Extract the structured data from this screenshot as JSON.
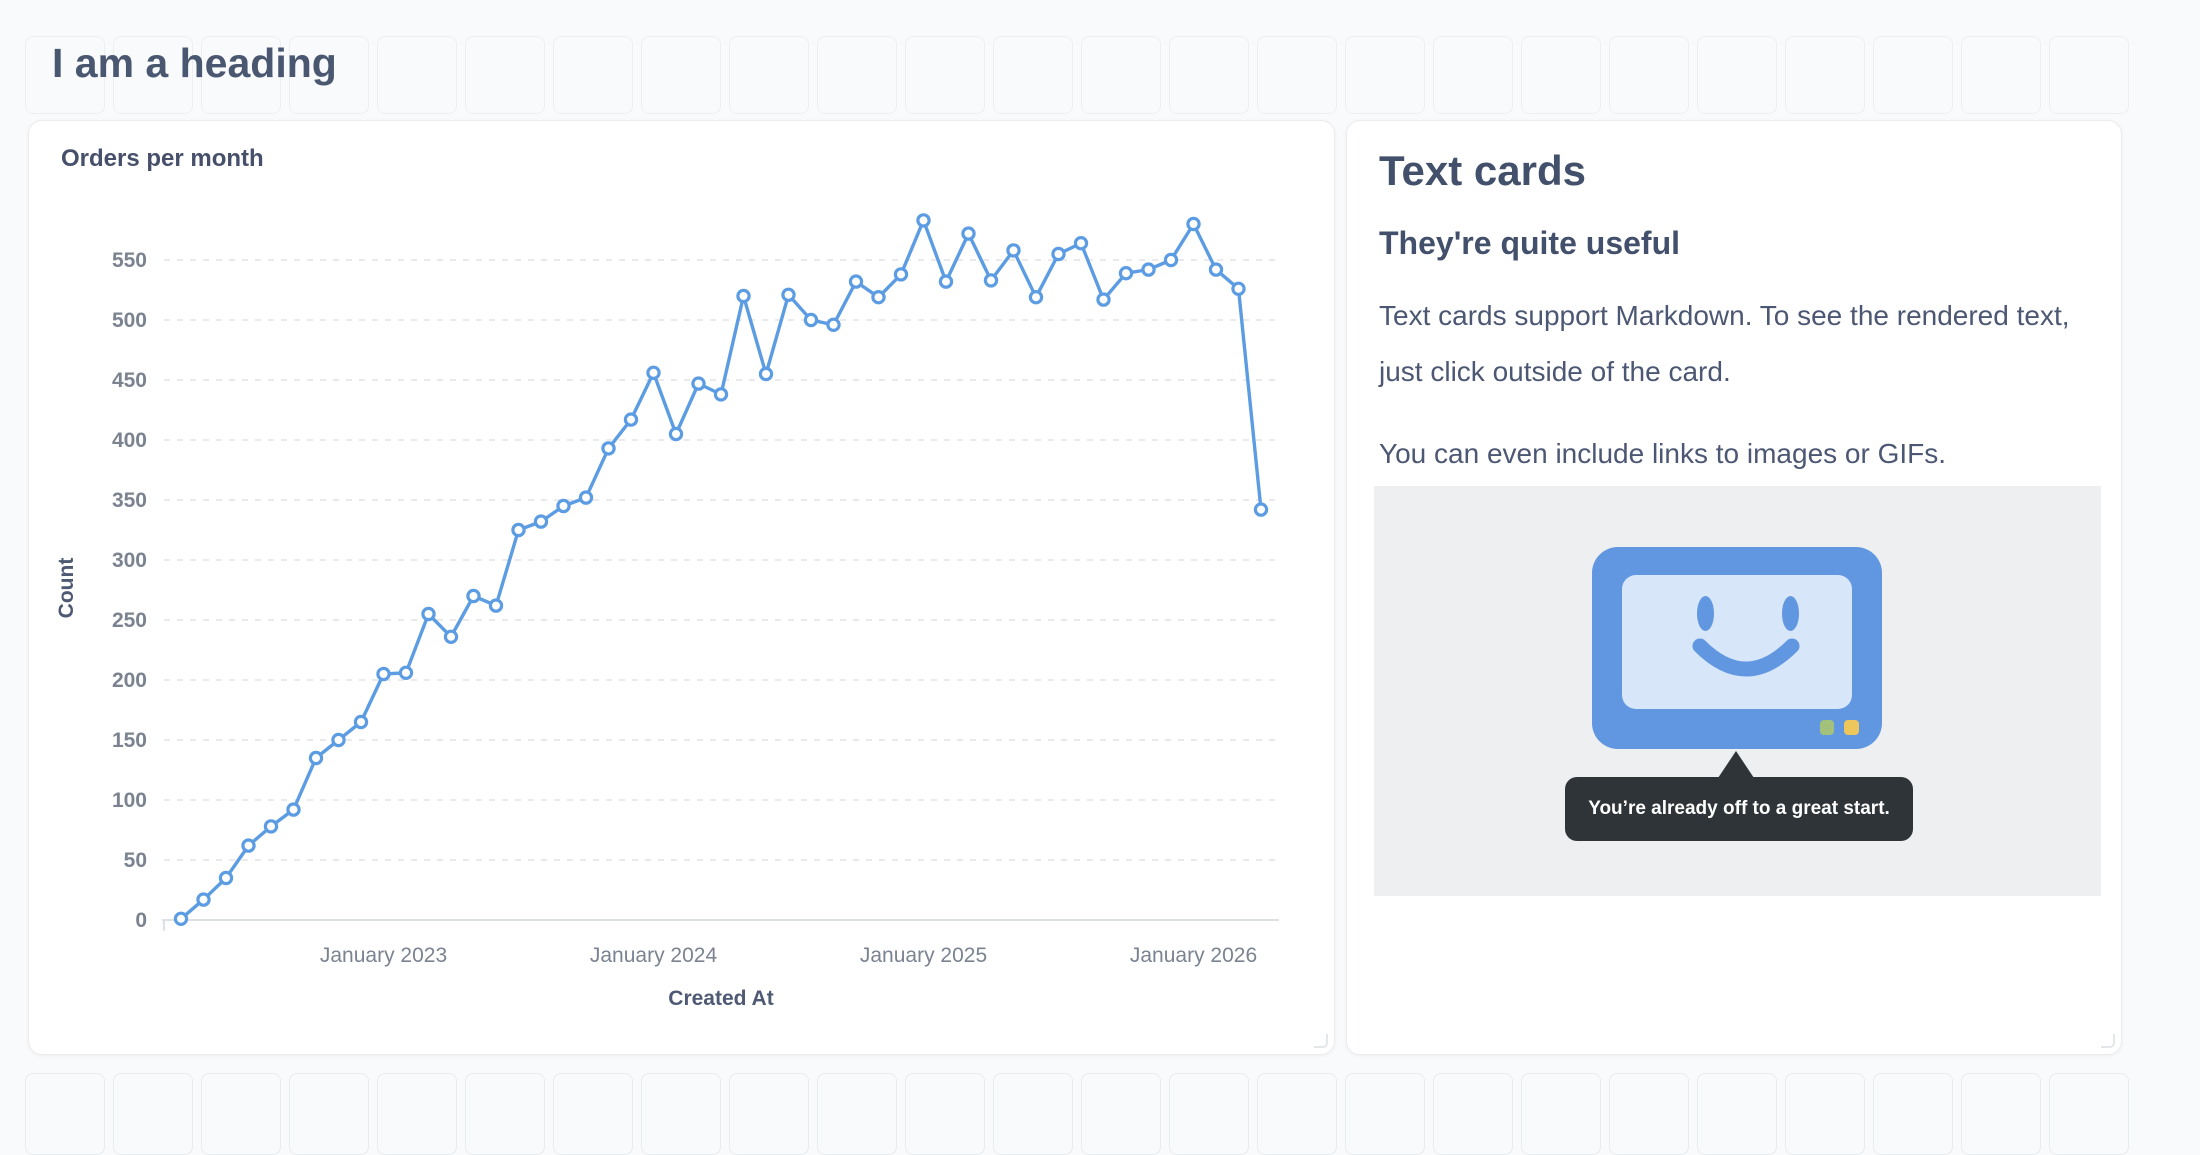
{
  "page": {
    "background": "#f9fafc"
  },
  "heading": {
    "title": "I am a heading"
  },
  "chart_card": {
    "title": "Orders per month"
  },
  "chart_data": {
    "type": "line",
    "title": "Orders per month",
    "xlabel": "Created At",
    "ylabel": "Count",
    "x_unit": "month",
    "categories": [
      "2022-04",
      "2022-05",
      "2022-06",
      "2022-07",
      "2022-08",
      "2022-09",
      "2022-10",
      "2022-11",
      "2022-12",
      "2023-01",
      "2023-02",
      "2023-03",
      "2023-04",
      "2023-05",
      "2023-06",
      "2023-07",
      "2023-08",
      "2023-09",
      "2023-10",
      "2023-11",
      "2023-12",
      "2024-01",
      "2024-02",
      "2024-03",
      "2024-04",
      "2024-05",
      "2024-06",
      "2024-07",
      "2024-08",
      "2024-09",
      "2024-10",
      "2024-11",
      "2024-12",
      "2025-01",
      "2025-02",
      "2025-03",
      "2025-04",
      "2025-05",
      "2025-06",
      "2025-07",
      "2025-08",
      "2025-09",
      "2025-10",
      "2025-11",
      "2025-12",
      "2026-01",
      "2026-02",
      "2026-03",
      "2026-04"
    ],
    "values": [
      1,
      17,
      35,
      62,
      78,
      92,
      135,
      150,
      165,
      205,
      206,
      255,
      236,
      270,
      262,
      325,
      332,
      345,
      352,
      393,
      417,
      456,
      405,
      447,
      438,
      520,
      455,
      521,
      500,
      496,
      532,
      519,
      538,
      583,
      532,
      572,
      533,
      558,
      519,
      555,
      564,
      517,
      539,
      542,
      550,
      580,
      542,
      526,
      342
    ],
    "x_ticks": [
      {
        "label": "January 2023",
        "index": 9
      },
      {
        "label": "January 2024",
        "index": 21
      },
      {
        "label": "January 2025",
        "index": 33
      },
      {
        "label": "January 2026",
        "index": 45
      }
    ],
    "ylim": [
      0,
      590
    ],
    "ytick_step": 50,
    "ytick_max": 550,
    "grid": "horizontal-dashed",
    "legend": "none",
    "markers": "open-circle",
    "series_color": "#5c9ce2"
  },
  "text_card": {
    "heading": "Text cards",
    "subheading": "They're quite useful",
    "paragraph1": "Text cards support Markdown. To see the rendered text, just click outside of the card.",
    "paragraph2": "You can even include links to images or GIFs.",
    "tooltip": "You’re already off to a great start."
  },
  "colors": {
    "line": "#5c9ce2",
    "blue": "#6197e1",
    "screen": "#d7e6f9",
    "panel": "#edeff1",
    "tooltip": "#2f3438",
    "green": "#a3c17b",
    "yellow": "#edc65c",
    "page_bg": "#f9fafc",
    "heading_text": "#4a5770",
    "body_text": "#4c5773",
    "tick_text": "#7b8391"
  }
}
